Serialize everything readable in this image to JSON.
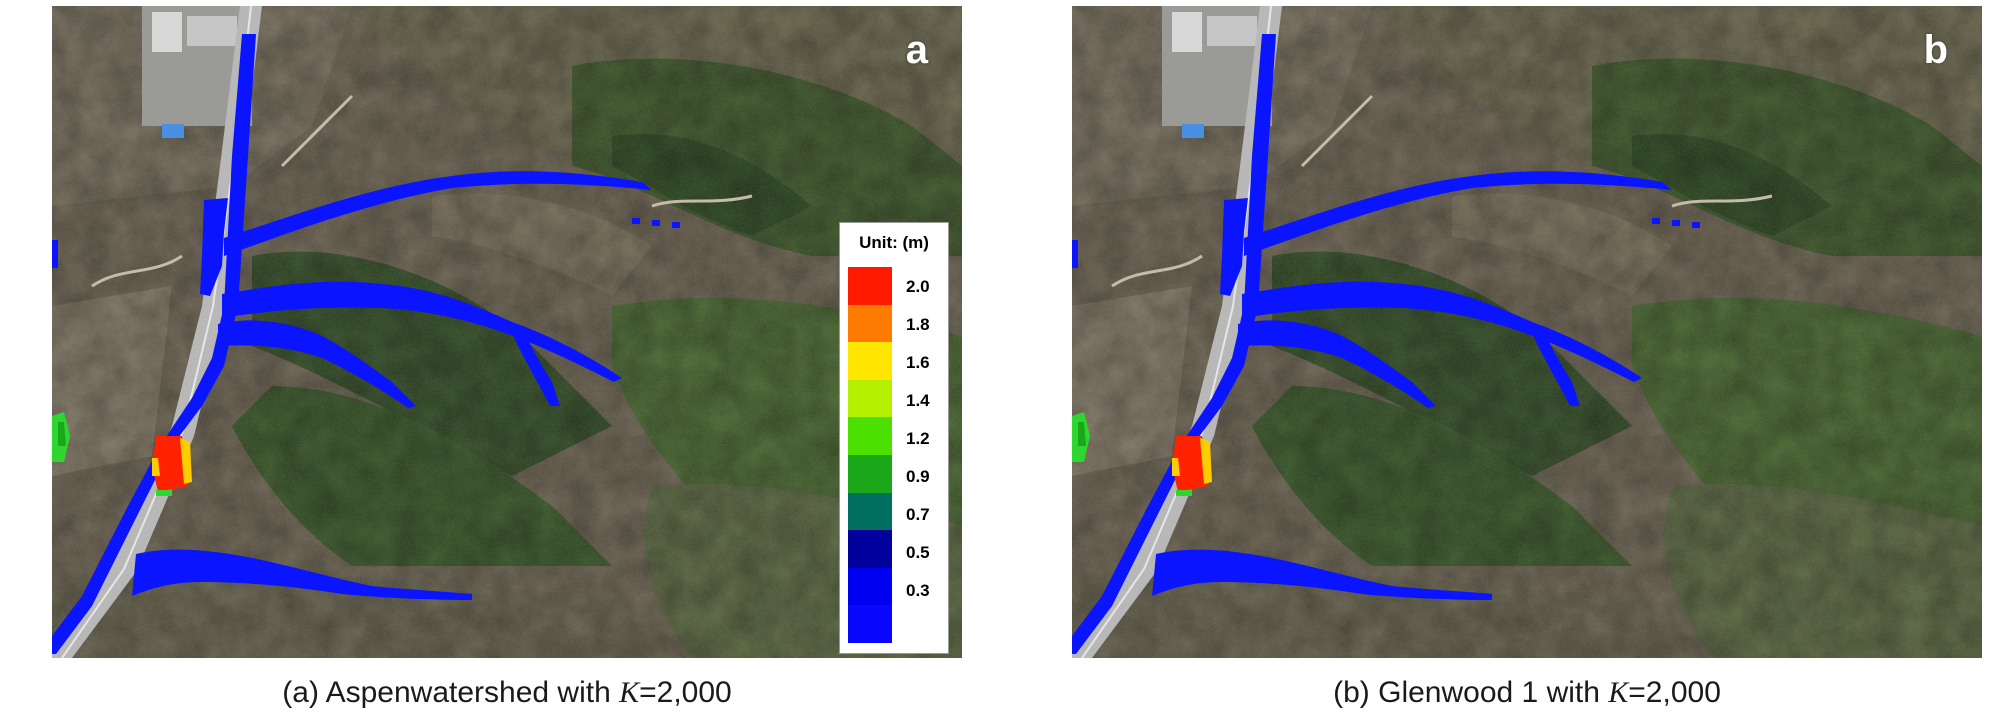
{
  "panels": [
    {
      "letter": "a",
      "caption_prefix": "(a) Aspenwatershed with ",
      "caption_var": "K",
      "caption_value": "=2,000",
      "legend": {
        "title": "Unit: (m)",
        "values": [
          "2.0",
          "1.8",
          "1.6",
          "1.4",
          "1.2",
          "0.9",
          "0.7",
          "0.5",
          "0.3"
        ],
        "colors": [
          "#ff1a00",
          "#ff7a00",
          "#ffe600",
          "#b4f000",
          "#4ce000",
          "#1aa81a",
          "#006f5f",
          "#00009c",
          "#0000f0",
          "#0808ff"
        ]
      }
    },
    {
      "letter": "b",
      "caption_prefix": "(b) Glenwood 1 with ",
      "caption_var": "K",
      "caption_value": "=2,000"
    }
  ],
  "colors": {
    "flow": "#0a14ff",
    "deposit_high": "#ff2200",
    "deposit_mid": "#ffcc00",
    "deposit_low": "#2fd62f",
    "terrain_base": "#6f6757",
    "forest": "#2f4f26",
    "road": "#b8b8b8"
  }
}
